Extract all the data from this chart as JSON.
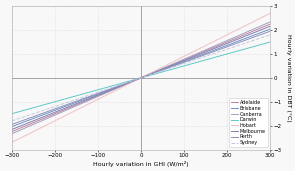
{
  "title": "",
  "xlabel": "Hourly variation in GHI (W/m²)",
  "ylabel": "Hourly variation in DBT (°C)",
  "xlim": [
    -300,
    300
  ],
  "ylim": [
    -3.0,
    3.0
  ],
  "xticks": [
    -300,
    -200,
    -100,
    0,
    100,
    200,
    300
  ],
  "yticks": [
    -3.0,
    -2.0,
    -1.0,
    0.0,
    1.0,
    2.0,
    3.0
  ],
  "cities": [
    "Adelaide",
    "Brisbane",
    "Canberra",
    "Darwin",
    "Hobart",
    "Melbourne",
    "Perth",
    "Sydney"
  ],
  "city_params": {
    "Adelaide": {
      "slope": 0.0075,
      "intercept": 0.0,
      "color": "#C080A0",
      "ls": "-",
      "lw": 0.7
    },
    "Brisbane": {
      "slope": 0.0068,
      "intercept": 0.0,
      "color": "#7090C8",
      "ls": "-",
      "lw": 0.7
    },
    "Canberra": {
      "slope": 0.0078,
      "intercept": 0.0,
      "color": "#A0A0C0",
      "ls": "-",
      "lw": 0.7
    },
    "Darwin": {
      "slope": 0.005,
      "intercept": 0.0,
      "color": "#60C8C8",
      "ls": "-",
      "lw": 0.7
    },
    "Hobart": {
      "slope": 0.009,
      "intercept": 0.0,
      "color": "#F0C0C0",
      "ls": "-",
      "lw": 0.7
    },
    "Melbourne": {
      "slope": 0.0072,
      "intercept": 0.0,
      "color": "#8080B0",
      "ls": "-",
      "lw": 0.7
    },
    "Perth": {
      "slope": 0.0065,
      "intercept": 0.0,
      "color": "#9090B8",
      "ls": "-",
      "lw": 0.7
    },
    "Sydney": {
      "slope": 0.006,
      "intercept": 0.0,
      "color": "#C0C8E0",
      "ls": "--",
      "lw": 0.7
    }
  },
  "background_color": "#f8f8f8",
  "grid_color": "#cccccc",
  "spine_color": "#aaaaaa",
  "figsize": [
    2.95,
    1.71
  ],
  "dpi": 100
}
